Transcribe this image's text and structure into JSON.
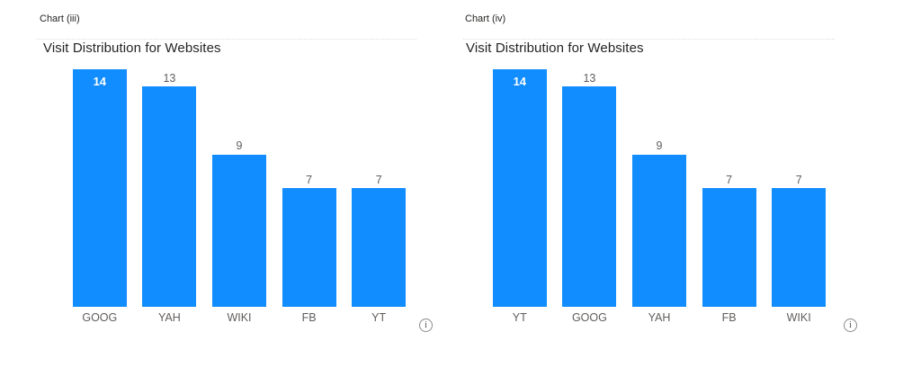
{
  "colors": {
    "bar": "#118DFF",
    "data_label": "#605E5C",
    "inside_label": "#FFFFFF",
    "axis_label": "#605E5C",
    "title": "#252423",
    "header": "#252423",
    "divider": "#DCDCDC",
    "background": "#FFFFFF"
  },
  "chart_data": [
    {
      "type": "bar",
      "header": "Chart (iii)",
      "title": "Visit Distribution for Websites",
      "categories": [
        "GOOG",
        "YAH",
        "WIKI",
        "FB",
        "YT"
      ],
      "values": [
        14,
        13,
        9,
        7,
        7
      ],
      "label_inside": [
        true,
        false,
        false,
        false,
        false
      ],
      "ylim": [
        0,
        14.5
      ],
      "xlabel": "",
      "ylabel": "",
      "grid": false,
      "legend": false,
      "data_labels": true,
      "bar_color": "#118DFF",
      "info_icon": "i"
    },
    {
      "type": "bar",
      "header": "Chart (iv)",
      "title": "Visit Distribution for Websites",
      "categories": [
        "YT",
        "GOOG",
        "YAH",
        "FB",
        "WIKI"
      ],
      "values": [
        14,
        13,
        9,
        7,
        7
      ],
      "label_inside": [
        true,
        false,
        false,
        false,
        false
      ],
      "ylim": [
        0,
        14.5
      ],
      "xlabel": "",
      "ylabel": "",
      "grid": false,
      "legend": false,
      "data_labels": true,
      "bar_color": "#118DFF",
      "info_icon": "i"
    }
  ]
}
